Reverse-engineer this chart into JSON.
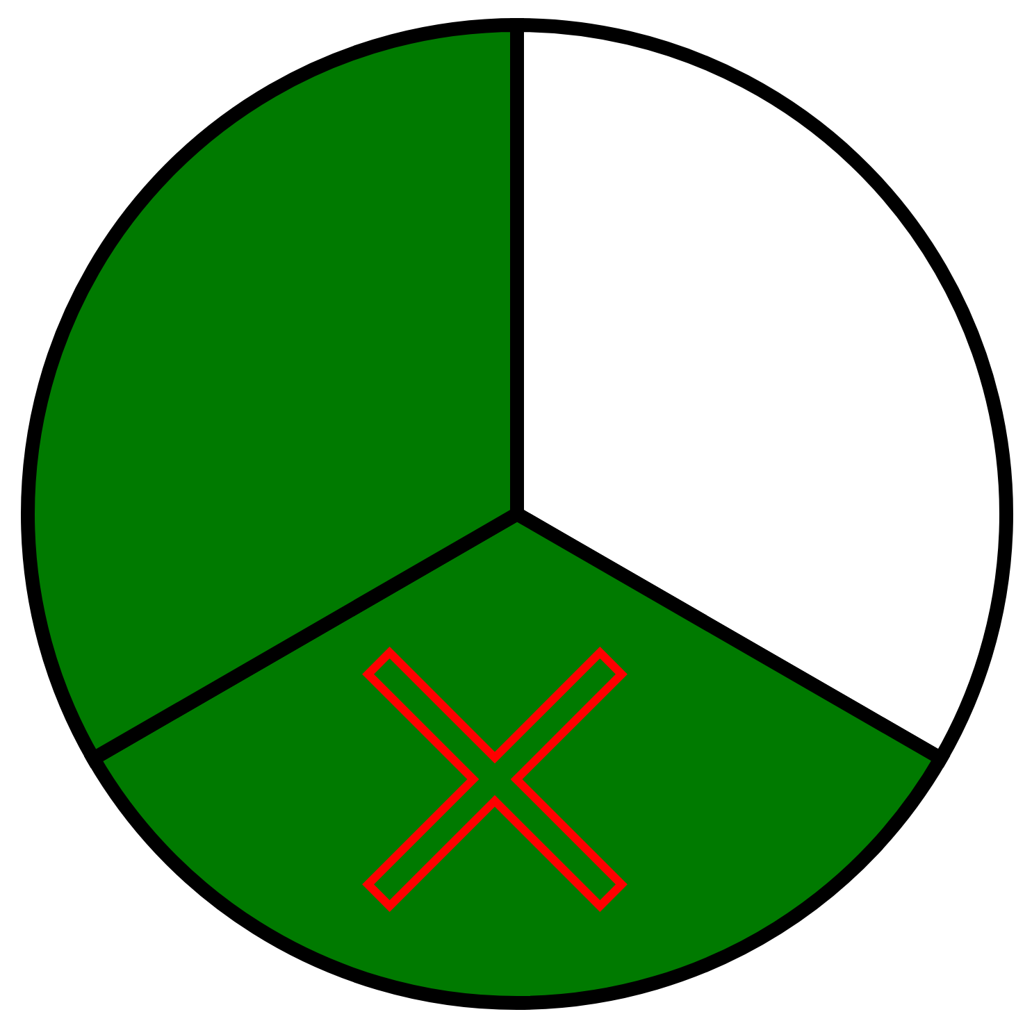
{
  "chart_data": {
    "type": "pie",
    "categories": [
      null,
      null,
      null
    ],
    "values": [
      33.33,
      33.33,
      33.34
    ],
    "colors": [
      "#ffffff",
      "#007a00",
      "#007a00"
    ]
  }
}
